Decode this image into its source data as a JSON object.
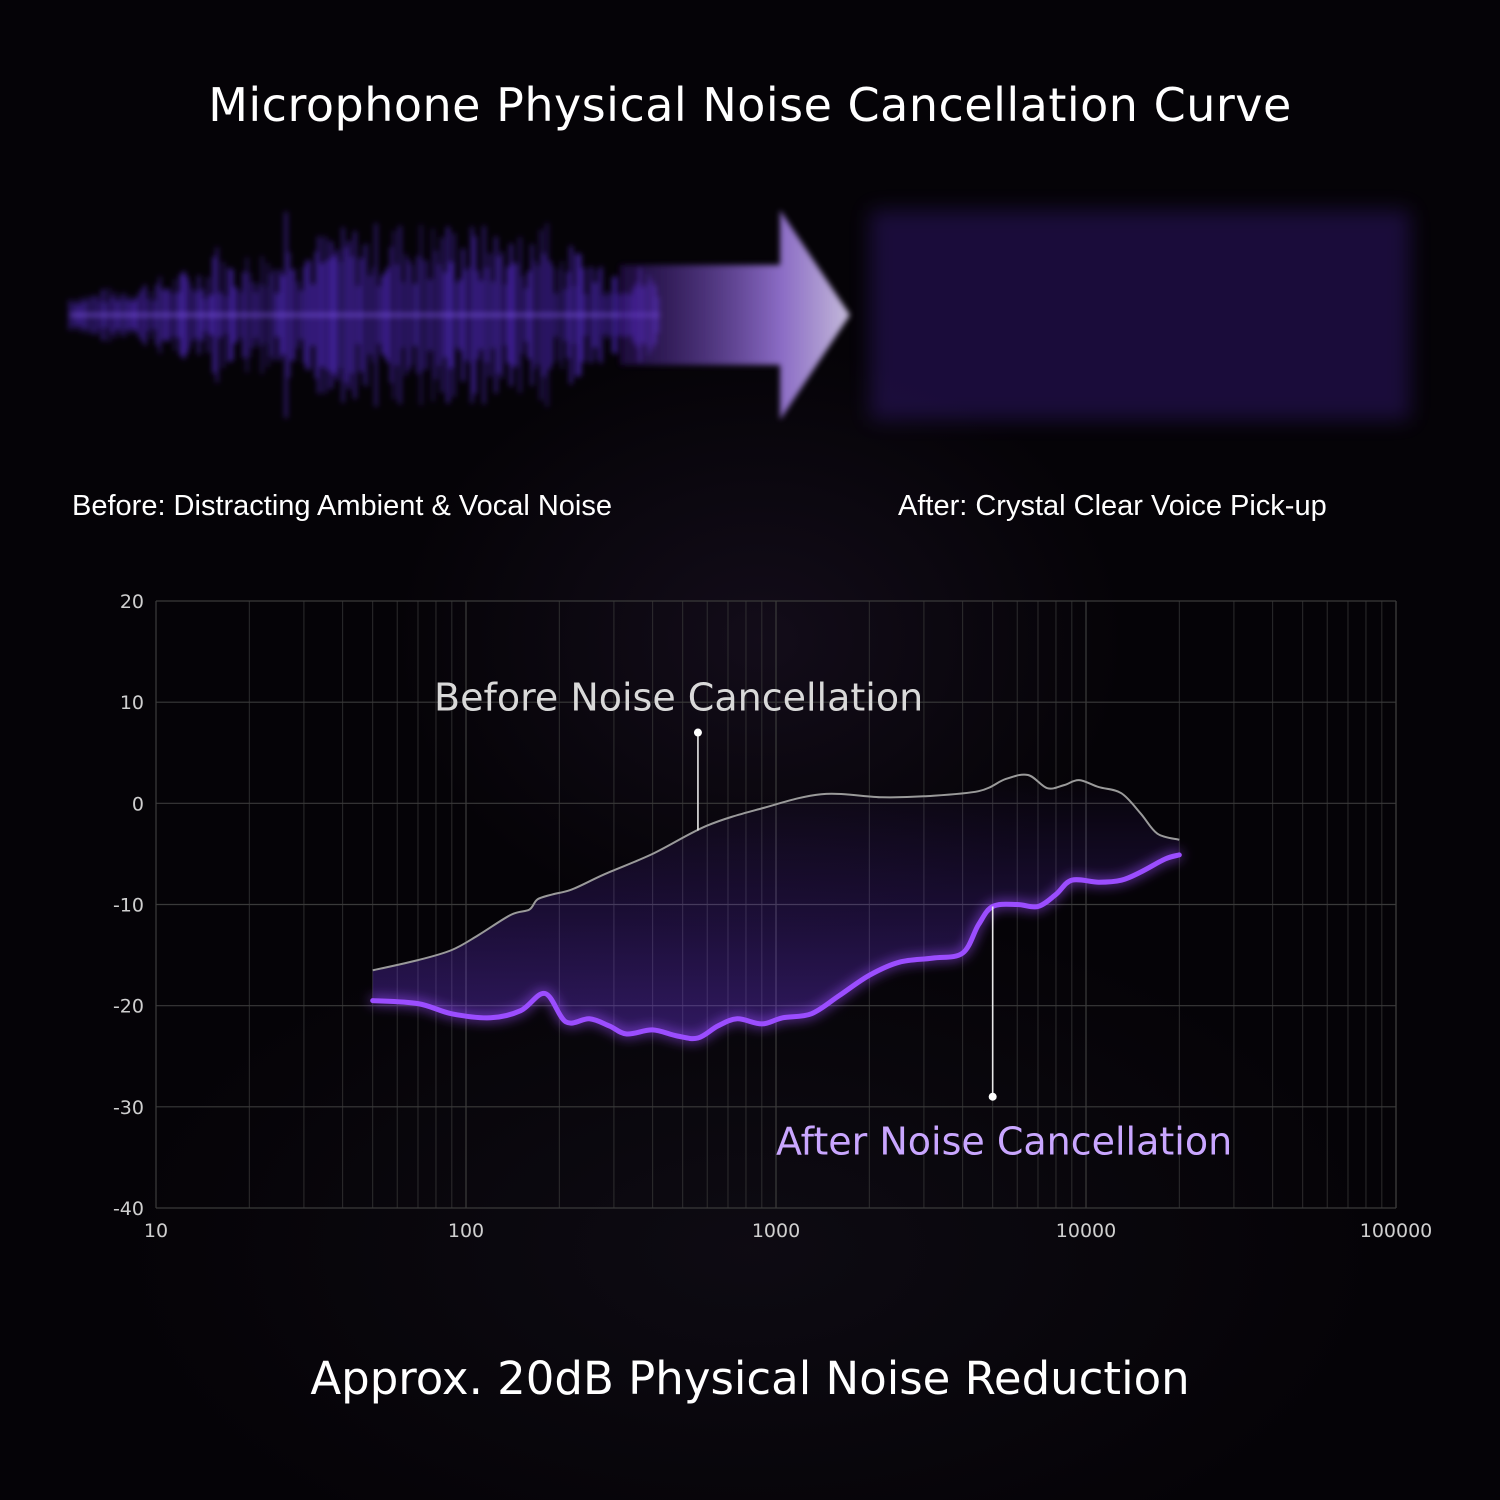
{
  "title": "Microphone Physical Noise Cancellation Curve",
  "wave_captions": {
    "before": "Before: Distracting Ambient & Vocal Noise",
    "after": "After: Crystal Clear Voice Pick-up"
  },
  "footer": "Approx. 20dB Physical Noise Reduction",
  "colors": {
    "accent": "#9b4dff",
    "after_label": "#c9a6ff",
    "before_line": "#9a9a9a",
    "grid": "#3a3a3a"
  },
  "chart_data": {
    "type": "line",
    "x_scale": "log",
    "xlim": [
      10,
      100000
    ],
    "ylim": [
      -40,
      20
    ],
    "x_ticks": [
      "10",
      "100",
      "1000",
      "10000",
      "100000"
    ],
    "y_ticks": [
      "20",
      "10",
      "0",
      "-10",
      "-20",
      "-30",
      "-40"
    ],
    "grid": true,
    "series": [
      {
        "name": "Before Noise Cancellation",
        "color": "#9a9a9a",
        "x": [
          50,
          70,
          90,
          110,
          140,
          160,
          170,
          190,
          220,
          280,
          400,
          600,
          900,
          1400,
          2200,
          3000,
          4500,
          5500,
          6500,
          7500,
          8500,
          9500,
          11000,
          13000,
          15000,
          17000,
          20000
        ],
        "y": [
          -16.5,
          -15.5,
          -14.5,
          -13,
          -11,
          -10.5,
          -9.5,
          -9,
          -8.5,
          -7,
          -5,
          -2.2,
          -0.5,
          0.9,
          0.6,
          0.7,
          1.2,
          2.4,
          2.8,
          1.5,
          1.8,
          2.3,
          1.6,
          1,
          -1,
          -3,
          -3.6
        ]
      },
      {
        "name": "After Noise Cancellation",
        "color": "#9b4dff",
        "x": [
          50,
          70,
          90,
          120,
          150,
          180,
          210,
          250,
          290,
          330,
          400,
          480,
          560,
          650,
          750,
          900,
          1050,
          1300,
          1600,
          2000,
          2500,
          3200,
          4000,
          4500,
          5000,
          6000,
          7000,
          8000,
          9000,
          11000,
          13000,
          15000,
          18000,
          20000
        ],
        "y": [
          -19.5,
          -19.8,
          -20.8,
          -21.2,
          -20.5,
          -18.8,
          -21.6,
          -21.3,
          -22,
          -22.8,
          -22.4,
          -23,
          -23.2,
          -22,
          -21.3,
          -21.8,
          -21.2,
          -20.8,
          -19,
          -17,
          -15.7,
          -15.3,
          -14.8,
          -12,
          -10.2,
          -10,
          -10.2,
          -9,
          -7.6,
          -7.8,
          -7.6,
          -6.8,
          -5.5,
          -5.1
        ]
      }
    ],
    "annotations": [
      {
        "text": "Before Noise Cancellation",
        "series": 0,
        "at_x": 560,
        "at_y": 7
      },
      {
        "text": "After Noise Cancellation",
        "series": 1,
        "at_x": 5000,
        "at_y": -29
      }
    ]
  }
}
